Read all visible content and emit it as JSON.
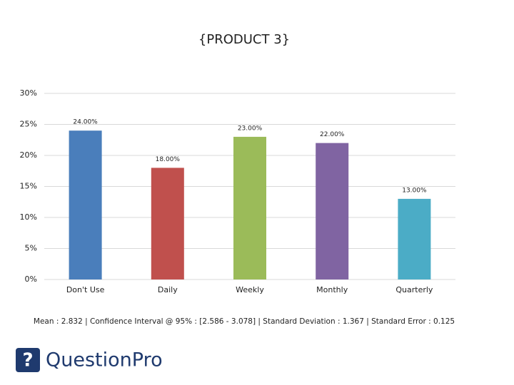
{
  "chart_data": {
    "type": "bar",
    "title": "{PRODUCT 3}",
    "categories": [
      "Don't Use",
      "Daily",
      "Weekly",
      "Monthly",
      "Quarterly"
    ],
    "values": [
      24,
      18,
      23,
      22,
      13
    ],
    "value_labels": [
      "24.00%",
      "18.00%",
      "23.00%",
      "22.00%",
      "13.00%"
    ],
    "colors": [
      "#4a7ebb",
      "#c0504d",
      "#9bbb59",
      "#8064a2",
      "#4bacc6"
    ],
    "ylim": [
      0,
      30
    ],
    "yticks": [
      {
        "value": 0,
        "label": "0%"
      },
      {
        "value": 5,
        "label": "5%"
      },
      {
        "value": 10,
        "label": "10%"
      },
      {
        "value": 15,
        "label": "15%"
      },
      {
        "value": 20,
        "label": "20%"
      },
      {
        "value": 25,
        "label": "25%"
      },
      {
        "value": 30,
        "label": "30%"
      }
    ],
    "grid": true,
    "footnote": "Mean : 2.832  |  Confidence Interval @ 95% : [2.586 - 3.078]  |  Standard Deviation : 1.367  |  Standard Error : 0.125"
  },
  "logo": "QuestionPro"
}
